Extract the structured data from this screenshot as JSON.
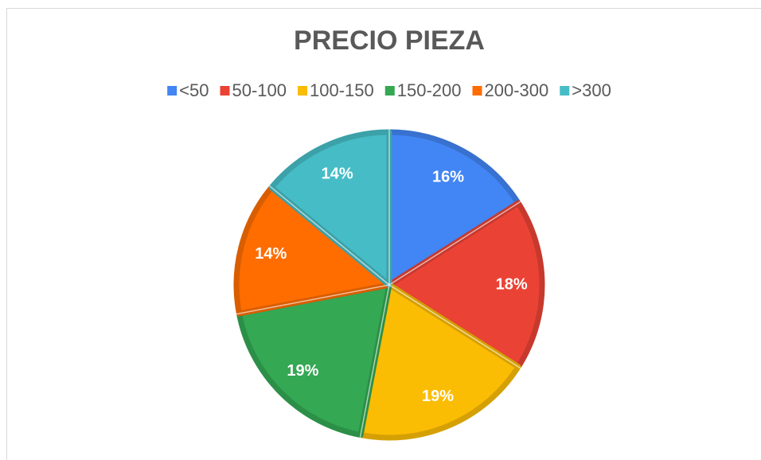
{
  "chart_data": {
    "type": "pie",
    "title": "PRECIO PIEZA",
    "categories": [
      "<50",
      "50-100",
      "100-150",
      "150-200",
      "200-300",
      ">300"
    ],
    "values": [
      16,
      18,
      19,
      19,
      14,
      14
    ],
    "value_labels": [
      "16%",
      "18%",
      "19%",
      "19%",
      "14%",
      "14%"
    ],
    "colors": [
      "#4285f4",
      "#ea4335",
      "#fbbc04",
      "#34a853",
      "#ff6d01",
      "#46bdc6"
    ],
    "legend": "top"
  }
}
